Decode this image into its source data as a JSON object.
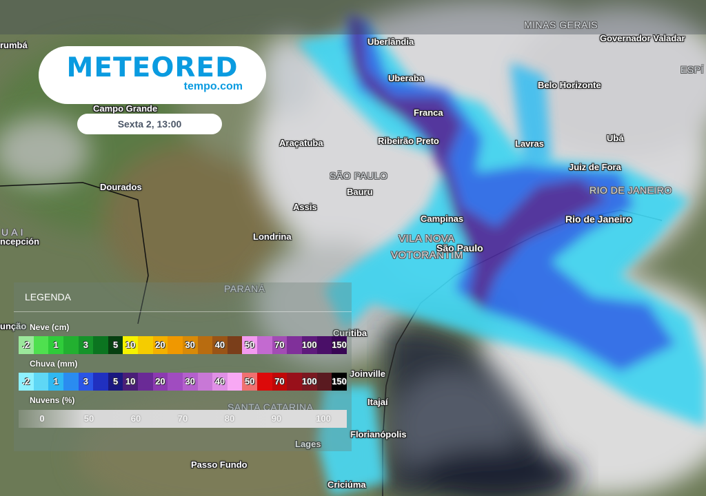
{
  "brand": {
    "name": "METEORED",
    "domain": "tempo.com",
    "color": "#0a9be0"
  },
  "timestamp": "Sexta 2, 13:00",
  "regions": [
    "MINAS GERAIS",
    "SÃO PAULO",
    "RIO DE JANEIRO",
    "PARANÁ",
    "SANTA CATARINA",
    "VILA NOVA",
    "VOTORANTIM",
    "ESPÍ",
    "U A I"
  ],
  "cities": [
    "rumbá",
    "Uberlândia",
    "Governador Valadar",
    "Uberaba",
    "Belo Horizonte",
    "Campo Grande",
    "Franca",
    "Ribeirão Preto",
    "Lavras",
    "Ubá",
    "Araçatuba",
    "Juiz de Fora",
    "Dourados",
    "Bauru",
    "Assis",
    "Campinas",
    "Rio de Janeiro",
    "Londrina",
    "ncepción",
    "São Paulo",
    "unção",
    "Curitiba",
    "Joinville",
    "Itajaí",
    "Florianópolis",
    "Lages",
    "Passo Fundo",
    "Criciúma"
  ],
  "legend": {
    "title": "LEGENDA",
    "snow": {
      "label": "Neve (cm)",
      "cells": [
        {
          "t": ".2",
          "c": "#9be79b"
        },
        {
          "t": "",
          "c": "#4fe04f"
        },
        {
          "t": "1",
          "c": "#2fcc3a"
        },
        {
          "t": "",
          "c": "#22b030"
        },
        {
          "t": "3",
          "c": "#16932a"
        },
        {
          "t": "",
          "c": "#0b7420"
        },
        {
          "t": "5",
          "c": "#073f10"
        },
        {
          "t": "10",
          "c": "#f6f200"
        },
        {
          "t": "",
          "c": "#f5cc00"
        },
        {
          "t": "20",
          "c": "#f4b000"
        },
        {
          "t": "",
          "c": "#f09800"
        },
        {
          "t": "30",
          "c": "#d88a08"
        },
        {
          "t": "",
          "c": "#b86c10"
        },
        {
          "t": "40",
          "c": "#995416"
        },
        {
          "t": "",
          "c": "#7a3e1a"
        },
        {
          "t": "50",
          "c": "#f39af0"
        },
        {
          "t": "",
          "c": "#c36ad0"
        },
        {
          "t": "70",
          "c": "#a24cb4"
        },
        {
          "t": "",
          "c": "#80309a"
        },
        {
          "t": "100",
          "c": "#5e1a7c"
        },
        {
          "t": "",
          "c": "#4a0f68"
        },
        {
          "t": "150",
          "c": "#380654"
        }
      ]
    },
    "rain": {
      "label": "Chuva (mm)",
      "cells": [
        {
          "t": ".2",
          "c": "#8ef0ff"
        },
        {
          "t": "",
          "c": "#5fd7f5"
        },
        {
          "t": "1",
          "c": "#30b8f2"
        },
        {
          "t": "",
          "c": "#2a8cf0"
        },
        {
          "t": "3",
          "c": "#2a55e6"
        },
        {
          "t": "",
          "c": "#2030c0"
        },
        {
          "t": "5",
          "c": "#1a1880"
        },
        {
          "t": "10",
          "c": "#4a1e78"
        },
        {
          "t": "",
          "c": "#6a2a96"
        },
        {
          "t": "20",
          "c": "#8c3ab0"
        },
        {
          "t": "",
          "c": "#a04cc0"
        },
        {
          "t": "30",
          "c": "#b460cc"
        },
        {
          "t": "",
          "c": "#c878d6"
        },
        {
          "t": "40",
          "c": "#e090e6"
        },
        {
          "t": "",
          "c": "#f8a8f4"
        },
        {
          "t": "50",
          "c": "#f07070"
        },
        {
          "t": "",
          "c": "#dc0a0a"
        },
        {
          "t": "70",
          "c": "#c00808"
        },
        {
          "t": "",
          "c": "#98101a"
        },
        {
          "t": "100",
          "c": "#7a1820"
        },
        {
          "t": "",
          "c": "#5a1a20"
        },
        {
          "t": "150",
          "c": "#000000"
        }
      ]
    },
    "clouds": {
      "label": "Nuvens (%)",
      "ticks": [
        "0",
        "50",
        "60",
        "70",
        "80",
        "90",
        "100"
      ]
    }
  }
}
